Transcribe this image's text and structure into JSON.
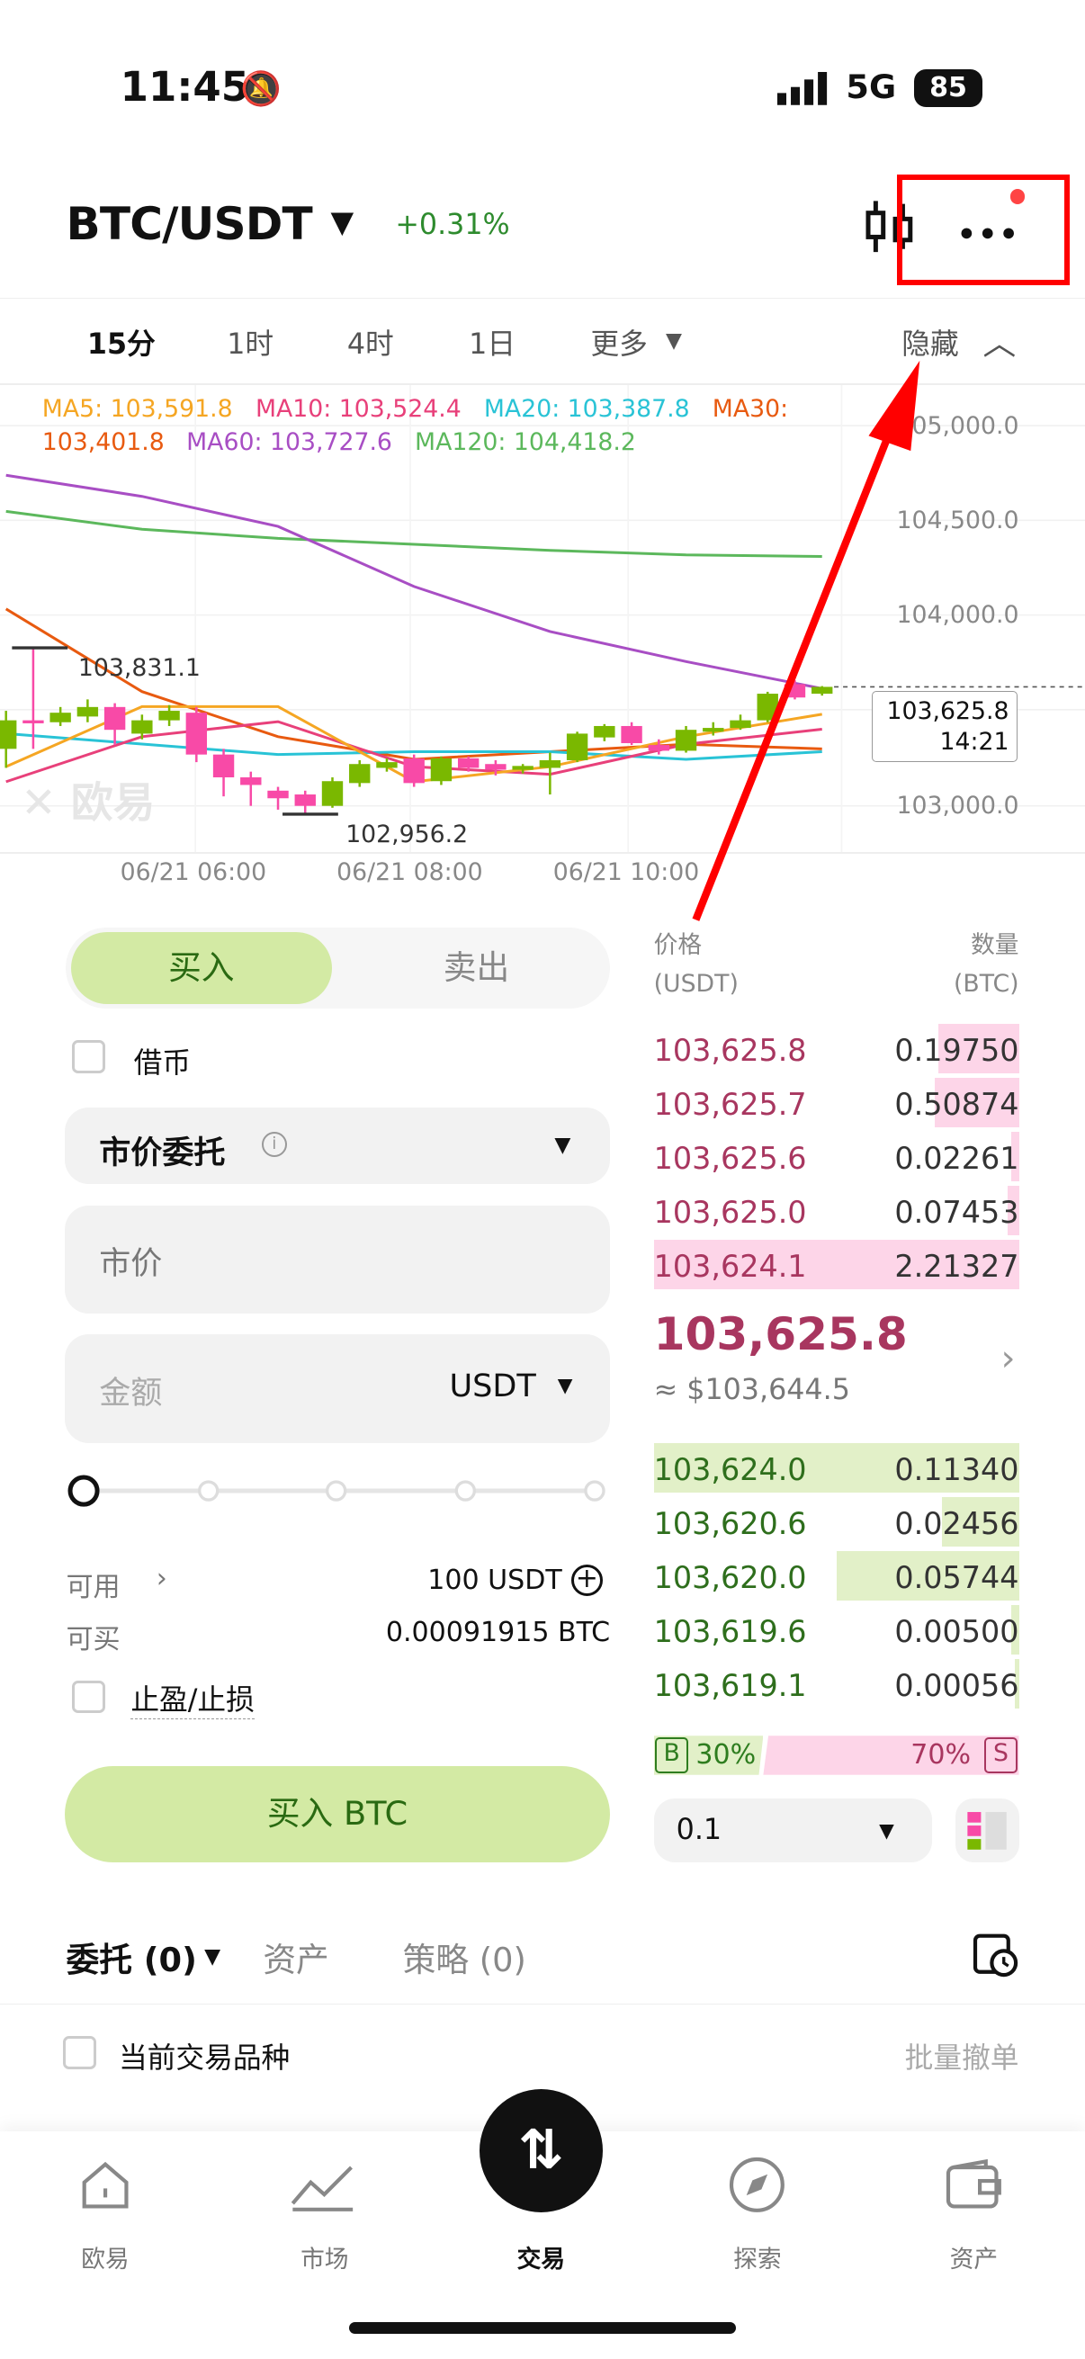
{
  "status": {
    "time": "11:45",
    "network": "5G",
    "battery": "85"
  },
  "header": {
    "pair": "BTC/USDT",
    "change": "+0.31%"
  },
  "timeframes": {
    "items": [
      "15分",
      "1时",
      "4时",
      "1日",
      "更多"
    ],
    "active": "15分",
    "hide": "隐藏"
  },
  "ma_legend": {
    "ma5": "MA5: 103,591.8",
    "ma10": "MA10: 103,524.4",
    "ma20": "MA20: 103,387.8",
    "ma30": "MA30:",
    "ma30_val": "103,401.8",
    "ma60": "MA60: 103,727.6",
    "ma120": "MA120: 104,418.2"
  },
  "chart_data": {
    "type": "candlestick",
    "interval": "15m",
    "y_ticks": [
      "105,000.0",
      "104,500.0",
      "104,000.0",
      "103,000.0"
    ],
    "x_ticks": [
      "06/21 06:00",
      "06/21 08:00",
      "06/21 10:00"
    ],
    "high_label": "103,831.1",
    "low_label": "102,956.2",
    "last_price": "103,625.8",
    "countdown": "14:21",
    "watermark": "欧易",
    "colors": {
      "up": "#7ab800",
      "down": "#f84aa7",
      "ma5": "#f5a623",
      "ma10": "#e8407a",
      "ma20": "#29c3d6",
      "ma30": "#e85a10",
      "ma60": "#a84ec4",
      "ma120": "#5cb85c"
    },
    "candles": [
      [
        103300,
        103450,
        103500,
        103200
      ],
      [
        103450,
        103440,
        103831,
        103300
      ],
      [
        103440,
        103490,
        103520,
        103420
      ],
      [
        103470,
        103520,
        103560,
        103440
      ],
      [
        103520,
        103400,
        103540,
        103320
      ],
      [
        103380,
        103450,
        103480,
        103350
      ],
      [
        103450,
        103500,
        103530,
        103420
      ],
      [
        103490,
        103270,
        103520,
        103230
      ],
      [
        103270,
        103150,
        103300,
        103050
      ],
      [
        103150,
        103110,
        103180,
        103000
      ],
      [
        103080,
        103040,
        103100,
        102980
      ],
      [
        103060,
        103000,
        103080,
        102956
      ],
      [
        103000,
        103130,
        103150,
        102990
      ],
      [
        103120,
        103220,
        103240,
        103100
      ],
      [
        103200,
        103230,
        103250,
        103180
      ],
      [
        103250,
        103120,
        103270,
        103100
      ],
      [
        103130,
        103250,
        103260,
        103110
      ],
      [
        103250,
        103200,
        103260,
        103180
      ],
      [
        103220,
        103190,
        103240,
        103160
      ],
      [
        103190,
        103210,
        103220,
        103170
      ],
      [
        103200,
        103240,
        103280,
        103060
      ],
      [
        103240,
        103380,
        103390,
        103230
      ],
      [
        103360,
        103420,
        103430,
        103340
      ],
      [
        103420,
        103330,
        103440,
        103320
      ],
      [
        103320,
        103290,
        103350,
        103270
      ],
      [
        103290,
        103400,
        103420,
        103280
      ],
      [
        103390,
        103410,
        103440,
        103370
      ],
      [
        103410,
        103450,
        103480,
        103400
      ],
      [
        103450,
        103590,
        103600,
        103440
      ],
      [
        103640,
        103570,
        103660,
        103560
      ],
      [
        103590,
        103626,
        103630,
        103580
      ]
    ],
    "ma_lines": {
      "ma120": [
        104549,
        104455,
        104407,
        104376,
        104344,
        104320,
        104312
      ],
      "ma60": [
        104739,
        104628,
        104470,
        104154,
        103917,
        103759,
        103617
      ],
      "ma30": [
        104036,
        103601,
        103364,
        103245,
        103285,
        103324,
        103300
      ],
      "ma20": [
        103380,
        103325,
        103270,
        103285,
        103285,
        103245,
        103285
      ],
      "ma10": [
        103127,
        103364,
        103443,
        103206,
        103166,
        103324,
        103403
      ],
      "ma5": [
        103206,
        103522,
        103522,
        103127,
        103206,
        103364,
        103482
      ]
    }
  },
  "order_form": {
    "buy": "买入",
    "sell": "卖出",
    "borrow": "借币",
    "order_type": "市价委托",
    "price_placeholder": "市价",
    "amount_placeholder": "金额",
    "amount_unit": "USDT",
    "slider_percent": 0,
    "available_label": "可用",
    "available_value": "100 USDT",
    "buyable_label": "可买",
    "buyable_value": "0.00091915 BTC",
    "tpsl": "止盈/止损",
    "submit": "买入 BTC"
  },
  "orderbook": {
    "price_h": "价格",
    "price_unit": "(USDT)",
    "qty_h": "数量",
    "qty_unit": "(BTC)",
    "asks": [
      {
        "p": "103,625.8",
        "q": "0.19750",
        "d": 0.22
      },
      {
        "p": "103,625.7",
        "q": "0.50874",
        "d": 0.23
      },
      {
        "p": "103,625.6",
        "q": "0.02261",
        "d": 0.02
      },
      {
        "p": "103,625.0",
        "q": "0.07453",
        "d": 0.03
      },
      {
        "p": "103,624.1",
        "q": "2.21327",
        "d": 1
      }
    ],
    "last": "103,625.8",
    "usd": "≈ $103,644.5",
    "bids": [
      {
        "p": "103,624.0",
        "q": "0.11340",
        "d": 1
      },
      {
        "p": "103,620.6",
        "q": "0.02456",
        "d": 0.21
      },
      {
        "p": "103,620.0",
        "q": "0.05744",
        "d": 0.5
      },
      {
        "p": "103,619.6",
        "q": "0.00500",
        "d": 0.02
      },
      {
        "p": "103,619.1",
        "q": "0.00056",
        "d": 0.01
      }
    ],
    "buy_ratio": "30%",
    "sell_ratio": "70%",
    "b": "B",
    "s": "S",
    "precision": "0.1"
  },
  "bottom_tabs": {
    "orders": "委托 (0)",
    "assets": "资产",
    "strategy": "策略 (0)",
    "current_pair": "当前交易品种",
    "cancel_all": "批量撤单"
  },
  "nav": [
    "欧易",
    "市场",
    "交易",
    "探索",
    "资产"
  ]
}
